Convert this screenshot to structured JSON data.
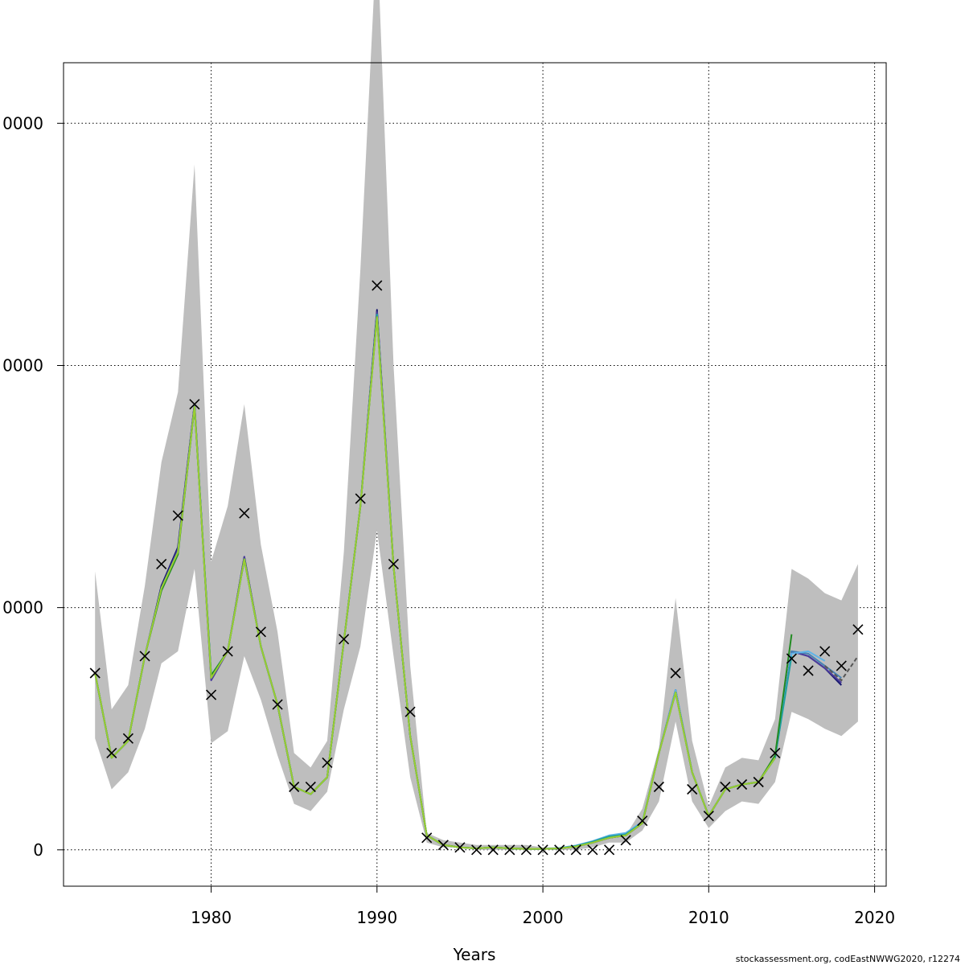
{
  "chart_data": {
    "type": "line",
    "title": "",
    "xlabel": "Years",
    "ylabel": "",
    "xlim": [
      1971.1,
      2020.7
    ],
    "ylim": [
      -7500,
      162500
    ],
    "grid": true,
    "x_ticks": [
      1980,
      1990,
      2000,
      2010,
      2020
    ],
    "y_ticks": [
      {
        "value": 0,
        "label": "0"
      },
      {
        "value": 50000,
        "label": "0000"
      },
      {
        "value": 100000,
        "label": "0000"
      },
      {
        "value": 150000,
        "label": "0000"
      }
    ],
    "colors": {
      "band": "#bebebe",
      "grid": "#000000",
      "observed_marker": "#000000",
      "forecast_dashed": "#555555"
    },
    "years": [
      1973,
      1974,
      1975,
      1976,
      1977,
      1978,
      1979,
      1980,
      1981,
      1982,
      1983,
      1984,
      1985,
      1986,
      1987,
      1988,
      1989,
      1990,
      1991,
      1992,
      1993,
      1994,
      1995,
      1996,
      1997,
      1998,
      1999,
      2000,
      2001,
      2002,
      2003,
      2004,
      2005,
      2006,
      2007,
      2008,
      2009,
      2010,
      2011,
      2012,
      2013,
      2014,
      2015,
      2016,
      2017,
      2018,
      2019
    ],
    "band_upper": [
      57500,
      29000,
      34000,
      54500,
      80000,
      94500,
      141500,
      59500,
      71000,
      92000,
      63000,
      45000,
      20000,
      17000,
      22500,
      61500,
      120000,
      189500,
      100000,
      38000,
      3500,
      2000,
      1500,
      1000,
      1000,
      1000,
      1000,
      500,
      500,
      1000,
      1500,
      2500,
      3000,
      8500,
      21000,
      52000,
      22500,
      9000,
      17000,
      19000,
      18500,
      27000,
      58000,
      56000,
      53000,
      51500,
      59000
    ],
    "band_lower": [
      23000,
      12500,
      16000,
      25000,
      38500,
      41000,
      58000,
      22000,
      24500,
      40000,
      31000,
      19500,
      9500,
      8000,
      12000,
      29000,
      42000,
      66000,
      40000,
      15000,
      1500,
      500,
      500,
      0,
      0,
      0,
      0,
      0,
      0,
      0,
      500,
      1500,
      1500,
      4000,
      10000,
      26500,
      10000,
      4500,
      8000,
      10000,
      9500,
      14000,
      28500,
      27000,
      25000,
      23500,
      26500
    ],
    "observed": [
      36500,
      20000,
      23000,
      40000,
      59000,
      69000,
      92000,
      32000,
      41000,
      69500,
      45000,
      30000,
      13000,
      13000,
      18000,
      43500,
      72500,
      116500,
      59000,
      28500,
      2500,
      1000,
      500,
      0,
      0,
      0,
      0,
      0,
      0,
      0,
      0,
      0,
      2000,
      6000,
      13000,
      36500,
      12500,
      7000,
      13000,
      13500,
      14000,
      20000,
      39500,
      37000,
      41000,
      38000,
      45500
    ],
    "series": [
      {
        "color": "#191970",
        "values": [
          36500,
          19000,
          22500,
          40000,
          54500,
          62500,
          92000,
          35500,
          41000,
          60500,
          42000,
          30000,
          13000,
          11500,
          15000,
          43000,
          71000,
          111500,
          58500,
          23500,
          3000,
          1000,
          500,
          300,
          500,
          300,
          200,
          200,
          300,
          700,
          1500,
          2500,
          3000,
          5500,
          20000,
          33000,
          16000,
          7000,
          12500,
          13500,
          14000,
          19000,
          41000,
          40000,
          37500,
          34000,
          null
        ]
      },
      {
        "color": "#4b3c9c",
        "values": [
          36500,
          19000,
          22500,
          40000,
          54000,
          62000,
          92000,
          35000,
          41000,
          60500,
          42000,
          30000,
          13000,
          11500,
          15000,
          43000,
          71000,
          111000,
          58500,
          23500,
          3000,
          1000,
          500,
          300,
          500,
          300,
          200,
          200,
          300,
          700,
          1500,
          2500,
          3000,
          5500,
          20000,
          33000,
          16000,
          7000,
          12500,
          13500,
          14000,
          19000,
          41000,
          40000,
          37500,
          34500,
          null
        ]
      },
      {
        "color": "#4682b4",
        "values": [
          36500,
          19000,
          22500,
          40000,
          54000,
          61500,
          91500,
          36000,
          41000,
          60000,
          42000,
          30000,
          13000,
          11500,
          15000,
          43000,
          71000,
          110500,
          58500,
          23500,
          3000,
          1000,
          500,
          300,
          500,
          300,
          200,
          200,
          300,
          800,
          1700,
          2800,
          3200,
          5600,
          20000,
          33000,
          16000,
          7000,
          12500,
          13500,
          14000,
          19000,
          41000,
          40500,
          38000,
          35500,
          null
        ]
      },
      {
        "color": "#5fb4e8",
        "values": [
          36500,
          19000,
          22500,
          40000,
          54000,
          61500,
          91500,
          36000,
          41000,
          60000,
          42000,
          30000,
          13000,
          11500,
          15000,
          43000,
          71000,
          110500,
          58500,
          23500,
          3000,
          1000,
          500,
          300,
          500,
          300,
          200,
          200,
          400,
          900,
          1800,
          3000,
          3500,
          5800,
          20000,
          33000,
          16000,
          7000,
          12500,
          13500,
          14000,
          19000,
          40500,
          41000,
          39000,
          null,
          null
        ]
      },
      {
        "color": "#20a0a0",
        "values": [
          36500,
          19000,
          22500,
          40000,
          54000,
          61500,
          91500,
          36000,
          41000,
          60000,
          42000,
          30000,
          13000,
          11500,
          15000,
          43000,
          71000,
          110500,
          58500,
          23500,
          3000,
          1000,
          500,
          300,
          500,
          300,
          200,
          200,
          300,
          800,
          1700,
          2800,
          3200,
          5600,
          20000,
          32500,
          16000,
          7000,
          12500,
          13500,
          14000,
          19000,
          40000,
          null,
          null,
          null,
          null
        ]
      },
      {
        "color": "#228b22",
        "values": [
          36500,
          19000,
          22500,
          40000,
          53500,
          61000,
          91500,
          36000,
          41000,
          60000,
          42000,
          30000,
          13000,
          11500,
          15000,
          43000,
          71000,
          110000,
          58500,
          23500,
          3000,
          1000,
          500,
          300,
          500,
          300,
          200,
          200,
          300,
          700,
          1500,
          2500,
          3000,
          5500,
          20000,
          32500,
          16000,
          7000,
          12500,
          13500,
          14000,
          19500,
          44500,
          null,
          null,
          null,
          null
        ]
      },
      {
        "color": "#9acd32",
        "values": [
          36500,
          19000,
          22500,
          40000,
          54000,
          61500,
          91500,
          35500,
          41000,
          60000,
          42000,
          30000,
          13000,
          11500,
          15000,
          43000,
          71000,
          110000,
          58500,
          23500,
          3000,
          1000,
          500,
          300,
          500,
          300,
          200,
          200,
          300,
          700,
          1500,
          2500,
          3000,
          5500,
          20000,
          32500,
          16000,
          7000,
          12500,
          13500,
          14000,
          19000,
          null,
          null,
          null,
          null,
          null
        ]
      }
    ],
    "forecast": {
      "dashed": true,
      "x": [
        2017,
        2018,
        2019
      ],
      "values": [
        38000,
        35000,
        40000
      ]
    }
  },
  "footer": {
    "credit": "stockassessment.org, codEastNWWG2020, r12274"
  }
}
